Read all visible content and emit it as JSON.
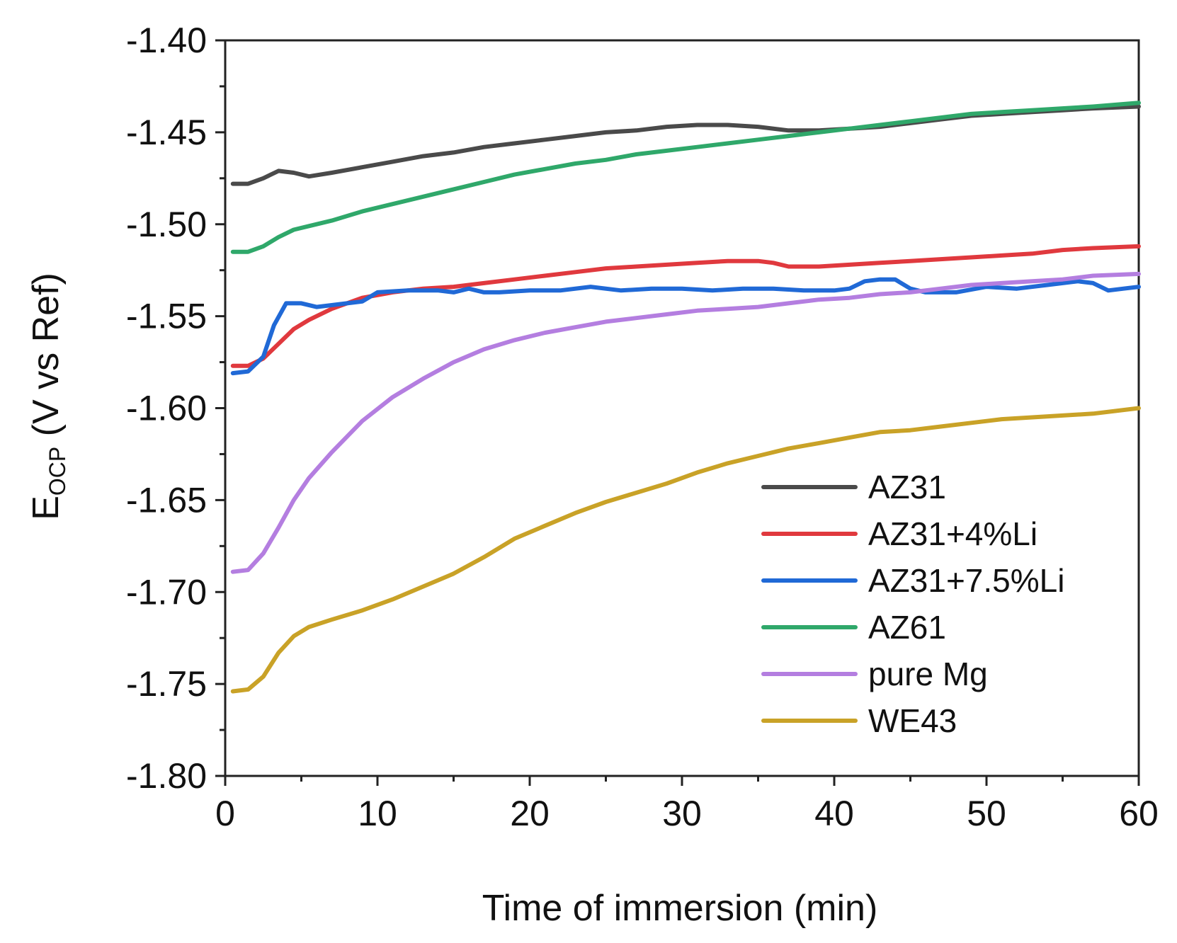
{
  "chart_data": {
    "type": "line",
    "title": "",
    "xlabel": "Time of immersion (min)",
    "ylabel_main": "E",
    "ylabel_sub": "OCP",
    "ylabel_rest": " (V vs Ref)",
    "xlim": [
      0,
      60
    ],
    "ylim": [
      -1.8,
      -1.4
    ],
    "xticks": [
      0,
      10,
      20,
      30,
      40,
      50,
      60
    ],
    "xtick_labels": [
      "0",
      "10",
      "20",
      "30",
      "40",
      "50",
      "60"
    ],
    "yticks": [
      -1.4,
      -1.45,
      -1.5,
      -1.55,
      -1.6,
      -1.65,
      -1.7,
      -1.75,
      -1.8
    ],
    "ytick_labels": [
      "-1.40",
      "-1.45",
      "-1.50",
      "-1.55",
      "-1.60",
      "-1.65",
      "-1.70",
      "-1.75",
      "-1.80"
    ],
    "grid": false,
    "legend_position": "bottom-right",
    "series": [
      {
        "name": "AZ31",
        "color": "#4a4a4a",
        "points": [
          [
            0.5,
            -1.478
          ],
          [
            1.5,
            -1.478
          ],
          [
            2.5,
            -1.475
          ],
          [
            3.5,
            -1.471
          ],
          [
            4.5,
            -1.472
          ],
          [
            5.5,
            -1.474
          ],
          [
            7,
            -1.472
          ],
          [
            9,
            -1.469
          ],
          [
            11,
            -1.466
          ],
          [
            13,
            -1.463
          ],
          [
            15,
            -1.461
          ],
          [
            17,
            -1.458
          ],
          [
            19,
            -1.456
          ],
          [
            21,
            -1.454
          ],
          [
            23,
            -1.452
          ],
          [
            25,
            -1.45
          ],
          [
            27,
            -1.449
          ],
          [
            29,
            -1.447
          ],
          [
            31,
            -1.446
          ],
          [
            33,
            -1.446
          ],
          [
            35,
            -1.447
          ],
          [
            37,
            -1.449
          ],
          [
            39,
            -1.449
          ],
          [
            41,
            -1.448
          ],
          [
            43,
            -1.447
          ],
          [
            45,
            -1.445
          ],
          [
            47,
            -1.443
          ],
          [
            49,
            -1.441
          ],
          [
            51,
            -1.44
          ],
          [
            53,
            -1.439
          ],
          [
            55,
            -1.438
          ],
          [
            57,
            -1.437
          ],
          [
            60,
            -1.436
          ]
        ]
      },
      {
        "name": "AZ31+4%Li",
        "color": "#e0393e",
        "points": [
          [
            0.5,
            -1.577
          ],
          [
            1.5,
            -1.577
          ],
          [
            2.5,
            -1.573
          ],
          [
            3.5,
            -1.565
          ],
          [
            4.5,
            -1.557
          ],
          [
            5.5,
            -1.552
          ],
          [
            7,
            -1.546
          ],
          [
            9,
            -1.54
          ],
          [
            11,
            -1.537
          ],
          [
            13,
            -1.535
          ],
          [
            15,
            -1.534
          ],
          [
            17,
            -1.532
          ],
          [
            19,
            -1.53
          ],
          [
            21,
            -1.528
          ],
          [
            23,
            -1.526
          ],
          [
            25,
            -1.524
          ],
          [
            27,
            -1.523
          ],
          [
            29,
            -1.522
          ],
          [
            31,
            -1.521
          ],
          [
            33,
            -1.52
          ],
          [
            35,
            -1.52
          ],
          [
            36,
            -1.521
          ],
          [
            37,
            -1.523
          ],
          [
            39,
            -1.523
          ],
          [
            41,
            -1.522
          ],
          [
            43,
            -1.521
          ],
          [
            45,
            -1.52
          ],
          [
            47,
            -1.519
          ],
          [
            49,
            -1.518
          ],
          [
            51,
            -1.517
          ],
          [
            53,
            -1.516
          ],
          [
            55,
            -1.514
          ],
          [
            57,
            -1.513
          ],
          [
            60,
            -1.512
          ]
        ]
      },
      {
        "name": "AZ31+7.5%Li",
        "color": "#2069d6",
        "points": [
          [
            0.5,
            -1.581
          ],
          [
            1.5,
            -1.58
          ],
          [
            2.5,
            -1.572
          ],
          [
            3.2,
            -1.555
          ],
          [
            4,
            -1.543
          ],
          [
            5,
            -1.543
          ],
          [
            6,
            -1.545
          ],
          [
            7,
            -1.544
          ],
          [
            8,
            -1.543
          ],
          [
            9,
            -1.542
          ],
          [
            10,
            -1.537
          ],
          [
            12,
            -1.536
          ],
          [
            14,
            -1.536
          ],
          [
            15,
            -1.537
          ],
          [
            16,
            -1.535
          ],
          [
            17,
            -1.537
          ],
          [
            18,
            -1.537
          ],
          [
            20,
            -1.536
          ],
          [
            22,
            -1.536
          ],
          [
            24,
            -1.534
          ],
          [
            26,
            -1.536
          ],
          [
            28,
            -1.535
          ],
          [
            30,
            -1.535
          ],
          [
            32,
            -1.536
          ],
          [
            34,
            -1.535
          ],
          [
            36,
            -1.535
          ],
          [
            38,
            -1.536
          ],
          [
            40,
            -1.536
          ],
          [
            41,
            -1.535
          ],
          [
            42,
            -1.531
          ],
          [
            43,
            -1.53
          ],
          [
            44,
            -1.53
          ],
          [
            45,
            -1.535
          ],
          [
            46,
            -1.537
          ],
          [
            48,
            -1.537
          ],
          [
            50,
            -1.534
          ],
          [
            52,
            -1.535
          ],
          [
            54,
            -1.533
          ],
          [
            55,
            -1.532
          ],
          [
            56,
            -1.531
          ],
          [
            57,
            -1.532
          ],
          [
            58,
            -1.536
          ],
          [
            59,
            -1.535
          ],
          [
            60,
            -1.534
          ]
        ]
      },
      {
        "name": "AZ61",
        "color": "#2fa86a",
        "points": [
          [
            0.5,
            -1.515
          ],
          [
            1.5,
            -1.515
          ],
          [
            2.5,
            -1.512
          ],
          [
            3.5,
            -1.507
          ],
          [
            4.5,
            -1.503
          ],
          [
            5.5,
            -1.501
          ],
          [
            7,
            -1.498
          ],
          [
            9,
            -1.493
          ],
          [
            11,
            -1.489
          ],
          [
            13,
            -1.485
          ],
          [
            15,
            -1.481
          ],
          [
            17,
            -1.477
          ],
          [
            19,
            -1.473
          ],
          [
            21,
            -1.47
          ],
          [
            23,
            -1.467
          ],
          [
            25,
            -1.465
          ],
          [
            27,
            -1.462
          ],
          [
            29,
            -1.46
          ],
          [
            31,
            -1.458
          ],
          [
            33,
            -1.456
          ],
          [
            35,
            -1.454
          ],
          [
            37,
            -1.452
          ],
          [
            39,
            -1.45
          ],
          [
            41,
            -1.448
          ],
          [
            43,
            -1.446
          ],
          [
            45,
            -1.444
          ],
          [
            47,
            -1.442
          ],
          [
            49,
            -1.44
          ],
          [
            51,
            -1.439
          ],
          [
            53,
            -1.438
          ],
          [
            55,
            -1.437
          ],
          [
            57,
            -1.436
          ],
          [
            60,
            -1.434
          ]
        ]
      },
      {
        "name": "pure Mg",
        "color": "#b47ee0",
        "points": [
          [
            0.5,
            -1.689
          ],
          [
            1.5,
            -1.688
          ],
          [
            2.5,
            -1.679
          ],
          [
            3.5,
            -1.665
          ],
          [
            4.5,
            -1.65
          ],
          [
            5.5,
            -1.638
          ],
          [
            7,
            -1.624
          ],
          [
            9,
            -1.607
          ],
          [
            11,
            -1.594
          ],
          [
            13,
            -1.584
          ],
          [
            15,
            -1.575
          ],
          [
            17,
            -1.568
          ],
          [
            19,
            -1.563
          ],
          [
            21,
            -1.559
          ],
          [
            23,
            -1.556
          ],
          [
            25,
            -1.553
          ],
          [
            27,
            -1.551
          ],
          [
            29,
            -1.549
          ],
          [
            31,
            -1.547
          ],
          [
            33,
            -1.546
          ],
          [
            35,
            -1.545
          ],
          [
            37,
            -1.543
          ],
          [
            39,
            -1.541
          ],
          [
            41,
            -1.54
          ],
          [
            43,
            -1.538
          ],
          [
            45,
            -1.537
          ],
          [
            47,
            -1.535
          ],
          [
            49,
            -1.533
          ],
          [
            51,
            -1.532
          ],
          [
            53,
            -1.531
          ],
          [
            55,
            -1.53
          ],
          [
            57,
            -1.528
          ],
          [
            60,
            -1.527
          ]
        ]
      },
      {
        "name": "WE43",
        "color": "#c9a227",
        "points": [
          [
            0.5,
            -1.754
          ],
          [
            1.5,
            -1.753
          ],
          [
            2.5,
            -1.746
          ],
          [
            3.5,
            -1.733
          ],
          [
            4.5,
            -1.724
          ],
          [
            5.5,
            -1.719
          ],
          [
            7,
            -1.715
          ],
          [
            9,
            -1.71
          ],
          [
            11,
            -1.704
          ],
          [
            13,
            -1.697
          ],
          [
            15,
            -1.69
          ],
          [
            17,
            -1.681
          ],
          [
            19,
            -1.671
          ],
          [
            21,
            -1.664
          ],
          [
            23,
            -1.657
          ],
          [
            25,
            -1.651
          ],
          [
            27,
            -1.646
          ],
          [
            29,
            -1.641
          ],
          [
            31,
            -1.635
          ],
          [
            33,
            -1.63
          ],
          [
            35,
            -1.626
          ],
          [
            37,
            -1.622
          ],
          [
            39,
            -1.619
          ],
          [
            41,
            -1.616
          ],
          [
            43,
            -1.613
          ],
          [
            45,
            -1.612
          ],
          [
            47,
            -1.61
          ],
          [
            49,
            -1.608
          ],
          [
            51,
            -1.606
          ],
          [
            53,
            -1.605
          ],
          [
            55,
            -1.604
          ],
          [
            57,
            -1.603
          ],
          [
            60,
            -1.6
          ]
        ]
      }
    ]
  }
}
